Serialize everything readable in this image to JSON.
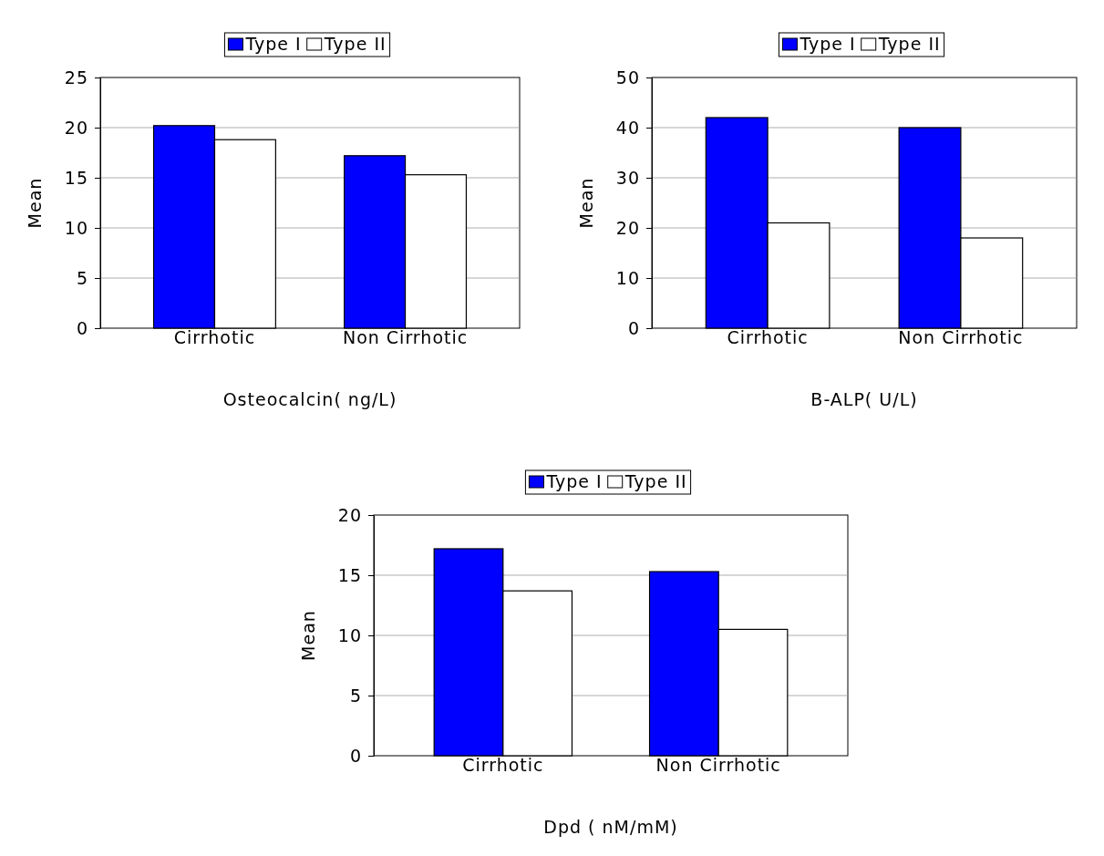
{
  "chart_data": [
    {
      "type": "bar",
      "xlabel": "Osteocalcin( ng/L)",
      "ylabel": "Mean",
      "categories": [
        "Cirrhotic",
        "Non Cirrhotic"
      ],
      "series": [
        {
          "name": "Type I",
          "color": "#0000ff",
          "values": [
            20.2,
            17.2
          ]
        },
        {
          "name": "Type II",
          "color": "#ffffff",
          "values": [
            18.8,
            15.3
          ]
        }
      ],
      "ylim": [
        0,
        25
      ],
      "yticks": [
        0,
        5,
        10,
        15,
        20,
        25
      ],
      "grid": "y",
      "legend": "top"
    },
    {
      "type": "bar",
      "xlabel": "B-ALP( U/L)",
      "ylabel": "Mean",
      "categories": [
        "Cirrhotic",
        "Non Cirrhotic"
      ],
      "series": [
        {
          "name": "Type I",
          "color": "#0000ff",
          "values": [
            42,
            40
          ]
        },
        {
          "name": "Type II",
          "color": "#ffffff",
          "values": [
            21,
            18
          ]
        }
      ],
      "ylim": [
        0,
        50
      ],
      "yticks": [
        0,
        10,
        20,
        30,
        40,
        50
      ],
      "grid": "y",
      "legend": "top"
    },
    {
      "type": "bar",
      "xlabel": "Dpd ( nM/mM)",
      "ylabel": "Mean",
      "categories": [
        "Cirrhotic",
        "Non Cirrhotic"
      ],
      "series": [
        {
          "name": "Type I",
          "color": "#0000ff",
          "values": [
            17.2,
            15.3
          ]
        },
        {
          "name": "Type II",
          "color": "#ffffff",
          "values": [
            13.7,
            10.5
          ]
        }
      ],
      "ylim": [
        0,
        20
      ],
      "yticks": [
        0,
        5,
        10,
        15,
        20
      ],
      "grid": "y",
      "legend": "top"
    }
  ]
}
